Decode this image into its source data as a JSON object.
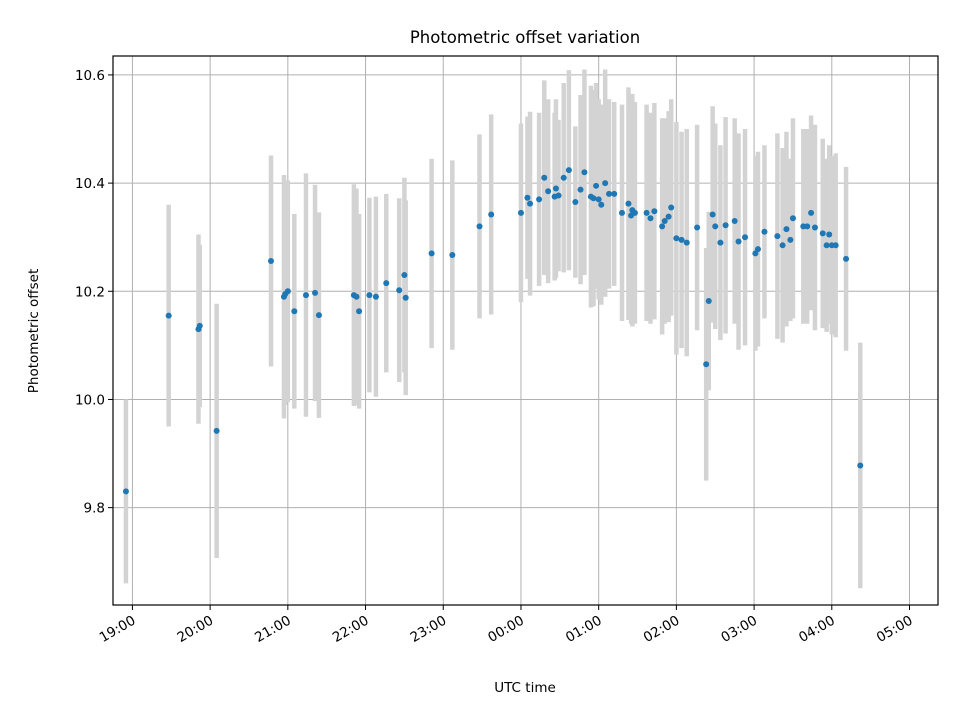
{
  "chart_data": {
    "type": "scatter",
    "title": "Photometric offset variation",
    "xlabel": "UTC time",
    "ylabel": "Photometric offset",
    "grid": true,
    "xlim": [
      "18:45",
      "05:22"
    ],
    "ylim": [
      9.62,
      10.635
    ],
    "x_ticks": [
      "19:00",
      "20:00",
      "21:00",
      "22:00",
      "23:00",
      "00:00",
      "01:00",
      "02:00",
      "03:00",
      "04:00",
      "05:00"
    ],
    "y_ticks": [
      "9.8",
      "10.0",
      "10.2",
      "10.4",
      "10.6"
    ],
    "errorbar_color": "#d3d3d3",
    "marker_color": "#1f77b4",
    "series": [
      {
        "x": [
          "18:55",
          "19:28",
          "19:51",
          "19:52",
          "20:05",
          "20:47",
          "20:57",
          "20:58",
          "21:00",
          "21:05",
          "21:14",
          "21:21",
          "21:24",
          "21:51",
          "21:53",
          "21:55",
          "22:03",
          "22:08",
          "22:16",
          "22:26",
          "22:30",
          "22:31",
          "22:51",
          "23:07",
          "23:28",
          "23:37",
          "24:00",
          "24:05",
          "24:07",
          "24:14",
          "24:18",
          "24:21",
          "24:26",
          "24:27",
          "24:29",
          "24:33",
          "24:37",
          "24:42",
          "24:46",
          "24:49",
          "24:54",
          "24:56",
          "24:58",
          "25:00",
          "25:02",
          "25:05",
          "25:08",
          "25:12",
          "25:18",
          "25:23",
          "25:25",
          "25:26",
          "25:28",
          "25:37",
          "25:40",
          "25:43",
          "25:49",
          "25:51",
          "25:54",
          "25:56",
          "26:00",
          "26:04",
          "26:08",
          "26:16",
          "26:23",
          "26:25",
          "26:28",
          "26:30",
          "26:34",
          "26:38",
          "26:45",
          "26:48",
          "26:53",
          "27:01",
          "27:03",
          "27:08",
          "27:18",
          "27:22",
          "27:25",
          "27:28",
          "27:30",
          "27:38",
          "27:41",
          "27:44",
          "27:47",
          "27:53",
          "27:56",
          "27:58",
          "28:00",
          "28:03",
          "28:11",
          "28:22"
        ],
        "y": [
          9.83,
          10.155,
          10.13,
          10.136,
          9.942,
          10.256,
          10.19,
          10.195,
          10.2,
          10.163,
          10.193,
          10.197,
          10.156,
          10.193,
          10.19,
          10.163,
          10.193,
          10.19,
          10.215,
          10.202,
          10.23,
          10.188,
          10.27,
          10.267,
          10.32,
          10.342,
          10.345,
          10.373,
          10.362,
          10.37,
          10.41,
          10.385,
          10.375,
          10.39,
          10.377,
          10.41,
          10.424,
          10.365,
          10.388,
          10.42,
          10.375,
          10.372,
          10.395,
          10.37,
          10.36,
          10.4,
          10.38,
          10.38,
          10.345,
          10.362,
          10.34,
          10.35,
          10.345,
          10.345,
          10.335,
          10.348,
          10.32,
          10.33,
          10.338,
          10.355,
          10.298,
          10.295,
          10.29,
          10.318,
          10.065,
          10.182,
          10.342,
          10.32,
          10.29,
          10.322,
          10.33,
          10.292,
          10.3,
          10.27,
          10.278,
          10.31,
          10.302,
          10.285,
          10.315,
          10.295,
          10.335,
          10.32,
          10.32,
          10.345,
          10.318,
          10.307,
          10.285,
          10.305,
          10.285,
          10.285,
          10.26,
          9.878
        ],
        "err": [
          0.17,
          0.205,
          0.175,
          0.15,
          0.235,
          0.195,
          0.225,
          0.205,
          0.205,
          0.18,
          0.225,
          0.2,
          0.19,
          0.205,
          0.2,
          0.18,
          0.18,
          0.185,
          0.165,
          0.17,
          0.18,
          0.18,
          0.175,
          0.175,
          0.17,
          0.185,
          0.165,
          0.15,
          0.17,
          0.16,
          0.18,
          0.17,
          0.155,
          0.165,
          0.14,
          0.175,
          0.185,
          0.14,
          0.175,
          0.19,
          0.205,
          0.2,
          0.19,
          0.185,
          0.185,
          0.21,
          0.175,
          0.17,
          0.2,
          0.215,
          0.2,
          0.215,
          0.205,
          0.2,
          0.195,
          0.2,
          0.2,
          0.19,
          0.195,
          0.2,
          0.215,
          0.2,
          0.21,
          0.19,
          0.215,
          0.165,
          0.2,
          0.19,
          0.18,
          0.2,
          0.19,
          0.2,
          0.2,
          0.18,
          0.18,
          0.16,
          0.19,
          0.18,
          0.18,
          0.15,
          0.185,
          0.18,
          0.18,
          0.18,
          0.19,
          0.175,
          0.16,
          0.165,
          0.165,
          0.17,
          0.17,
          0.227
        ]
      }
    ]
  }
}
